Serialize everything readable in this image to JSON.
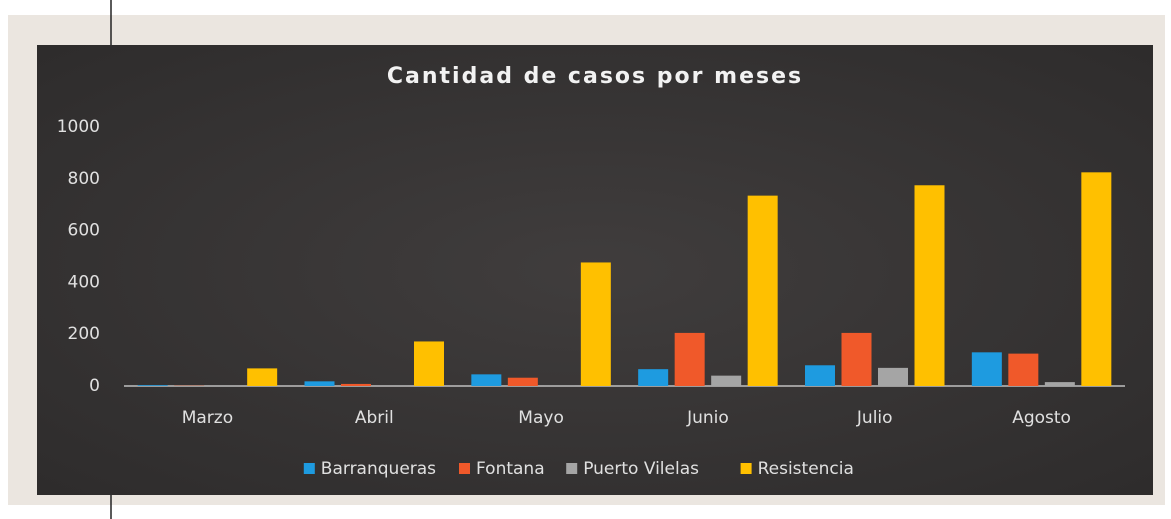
{
  "chart_data": {
    "type": "bar",
    "title": "Cantidad de casos por meses",
    "categories": [
      "Marzo",
      "Abril",
      "Mayo",
      "Junio",
      "Julio",
      "Agosto"
    ],
    "series": [
      {
        "name": "Barranqueras",
        "color": "#1e9be0",
        "values": [
          3,
          18,
          45,
          65,
          80,
          130
        ]
      },
      {
        "name": "Fontana",
        "color": "#f0592a",
        "values": [
          1,
          8,
          32,
          205,
          205,
          125
        ]
      },
      {
        "name": "Puerto Vilelas",
        "color": "#a5a5a5",
        "values": [
          3,
          3,
          3,
          40,
          70,
          15
        ]
      },
      {
        "name": "Resistencia",
        "color": "#ffc000",
        "values": [
          68,
          172,
          477,
          735,
          775,
          825
        ]
      }
    ],
    "ylim": [
      0,
      1000
    ],
    "yticks": [
      0,
      200,
      400,
      600,
      800,
      1000
    ],
    "grid": false,
    "legend": "bottom"
  }
}
